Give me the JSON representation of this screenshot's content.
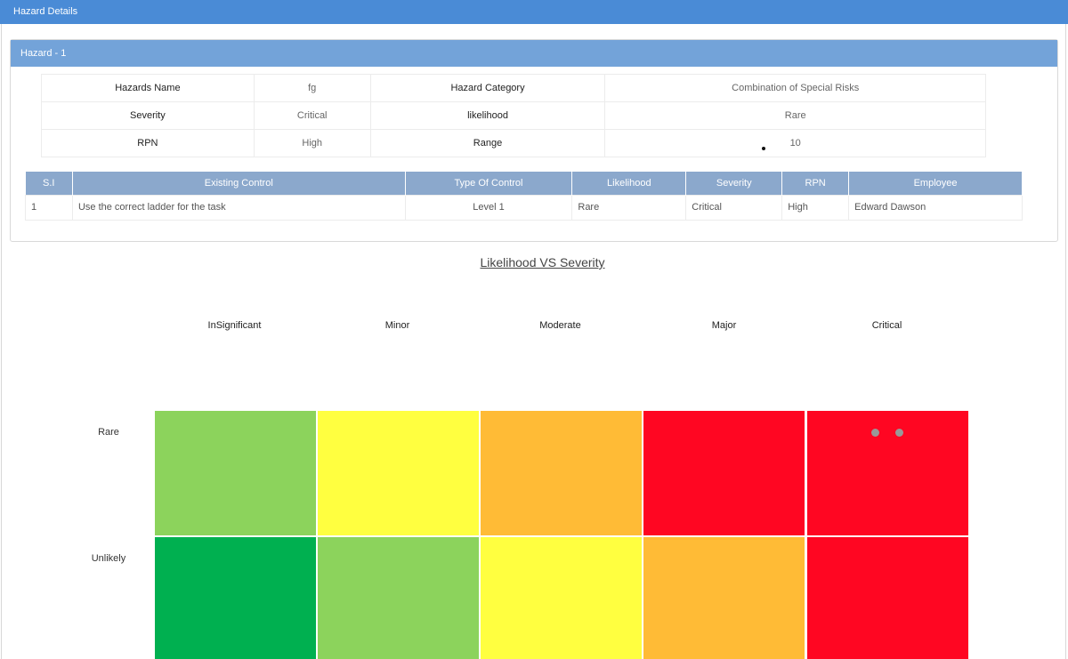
{
  "window": {
    "title": "Hazard Details"
  },
  "hazard": {
    "panel_title": "Hazard - 1",
    "info": [
      {
        "label1": "Hazards Name",
        "value1": "fg",
        "label2": "Hazard Category",
        "value2": "Combination of Special Risks"
      },
      {
        "label1": "Severity",
        "value1": "Critical",
        "label2": "likelihood",
        "value2": "Rare"
      },
      {
        "label1": "RPN",
        "value1": "High",
        "label2": "Range",
        "value2": "10"
      }
    ],
    "controls": {
      "headers": [
        "S.I",
        "Existing Control",
        "Type Of Control",
        "Likelihood",
        "Severity",
        "RPN",
        "Employee"
      ],
      "rows": [
        [
          "1",
          "Use the correct ladder for the task",
          "Level 1",
          "Rare",
          "Critical",
          "High",
          "Edward Dawson"
        ]
      ]
    }
  },
  "matrix": {
    "title": "Likelihood VS Severity",
    "severity": [
      "InSignificant",
      "Minor",
      "Moderate",
      "Major",
      "Critical"
    ],
    "likelihood": [
      "Rare",
      "Unlikely"
    ],
    "colors": [
      [
        "#8cd35c",
        "#ffff40",
        "#ffbb36",
        "#ff0622",
        "#ff0622"
      ],
      [
        "#00b050",
        "#8cd35c",
        "#ffff40",
        "#ffbb36",
        "#ff0622"
      ]
    ],
    "marker_color": "#999999"
  }
}
